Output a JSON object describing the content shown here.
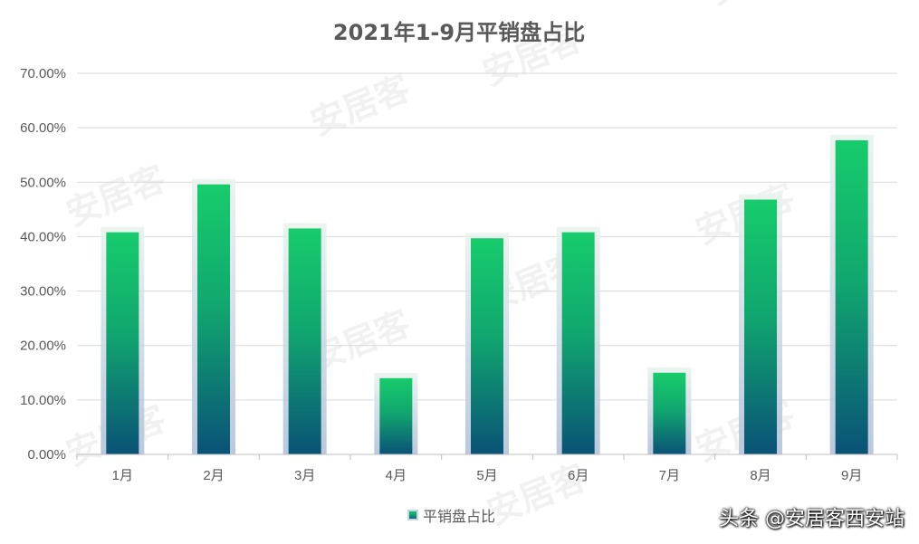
{
  "chart_data": {
    "type": "bar",
    "title": "2021年1-9月平销盘占比",
    "categories": [
      "1月",
      "2月",
      "3月",
      "4月",
      "5月",
      "6月",
      "7月",
      "8月",
      "9月"
    ],
    "series": [
      {
        "name": "平销盘占比",
        "values": [
          40.8,
          49.6,
          41.5,
          14.0,
          39.7,
          40.8,
          15.0,
          46.8,
          57.7
        ]
      }
    ],
    "yticks": [
      "0.00%",
      "10.00%",
      "20.00%",
      "30.00%",
      "40.00%",
      "50.00%",
      "60.00%",
      "70.00%"
    ],
    "ylim": [
      0,
      70
    ],
    "grid": true,
    "legend_position": "bottom",
    "colors": {
      "bar_top": "#17cc6c",
      "bar_mid": "#11a76f",
      "bar_bottom": "#0a5276",
      "glow": "#c6d4e8",
      "grid": "#d9d9d9",
      "axis": "#bfbfbf",
      "text": "#595959"
    }
  },
  "watermark": "安居客",
  "credit": "头条 @安居客西安站"
}
